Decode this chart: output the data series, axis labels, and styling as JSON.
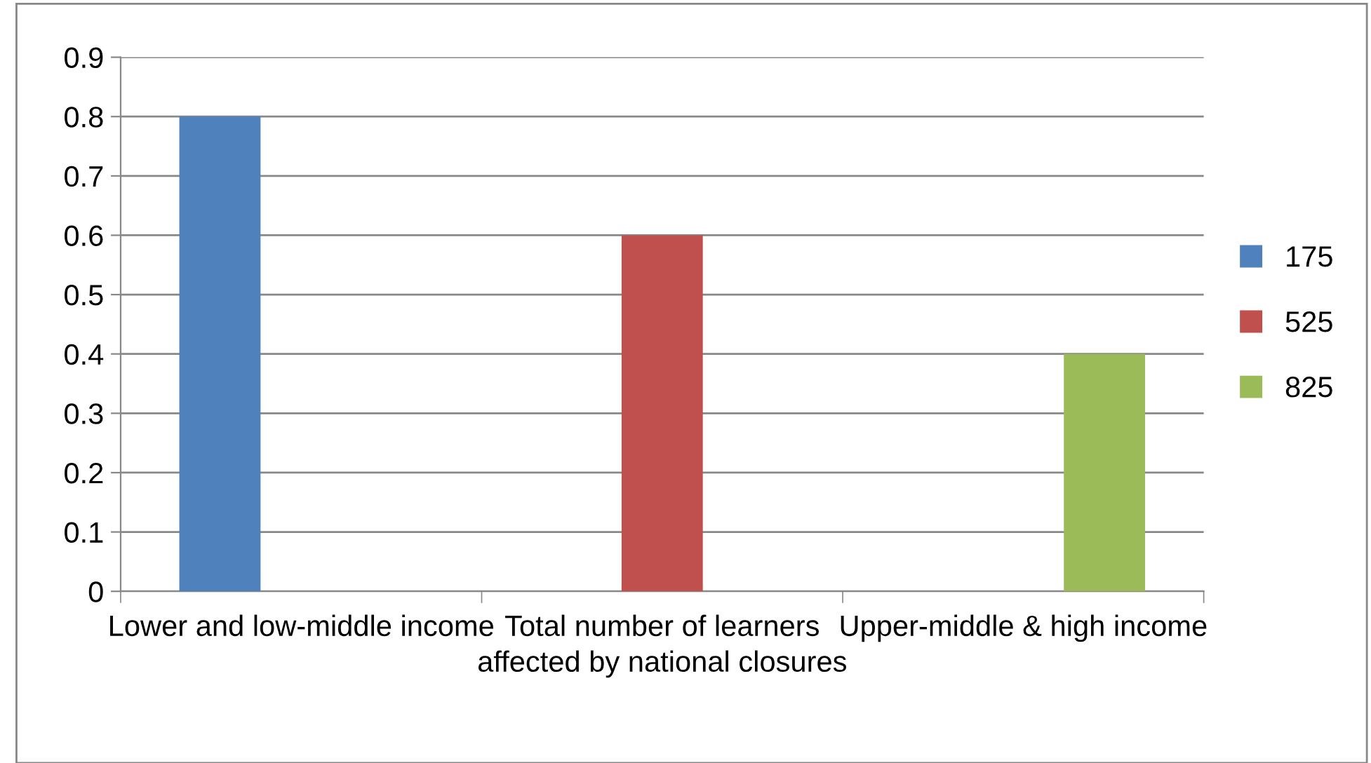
{
  "chart_data": {
    "type": "bar",
    "categories": [
      "Lower and low-middle income",
      "Total number of learners affected by national closures",
      "Upper-middle & high income"
    ],
    "series": [
      {
        "name": "175",
        "color": "#4f81bd",
        "values": [
          0.8,
          null,
          null
        ]
      },
      {
        "name": "525",
        "color": "#c0504d",
        "values": [
          null,
          0.6,
          null
        ]
      },
      {
        "name": "825",
        "color": "#9bbb59",
        "values": [
          null,
          null,
          0.4
        ]
      }
    ],
    "ylim": [
      0,
      0.9
    ],
    "yticks": [
      0,
      0.1,
      0.2,
      0.3,
      0.4,
      0.5,
      0.6,
      0.7,
      0.8,
      0.9
    ],
    "grid": "y",
    "legend": "right"
  }
}
